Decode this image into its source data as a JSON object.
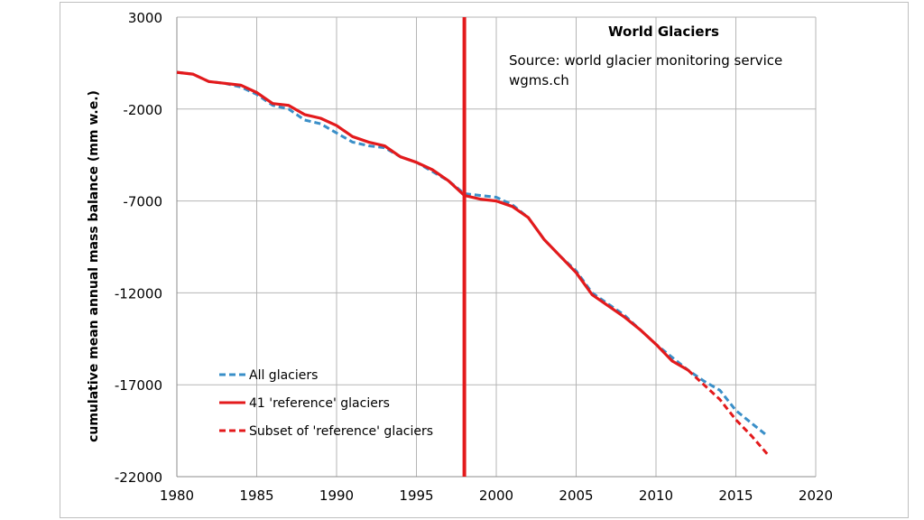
{
  "chart_data": {
    "type": "line",
    "title": "World Glaciers",
    "xlabel": "",
    "ylabel": "cumulative mean annual mass balance (mm w.e.)",
    "xlim": [
      1980,
      2020
    ],
    "ylim": [
      -22000,
      3000
    ],
    "x_ticks": [
      1980,
      1985,
      1990,
      1995,
      2000,
      2005,
      2010,
      2015,
      2020
    ],
    "y_ticks": [
      3000,
      -2000,
      -7000,
      -12000,
      -17000,
      -22000
    ],
    "grid": true,
    "legend_position": "bottom-left",
    "annotations": {
      "source": "Source: world glacier monitoring service",
      "url": "wgms.ch"
    },
    "vertical_marker": {
      "x": 1998,
      "color": "#e31a1c"
    },
    "series": [
      {
        "name": "All glaciers",
        "style": "dashed",
        "color": "#3a8fc8",
        "x": [
          1980,
          1981,
          1982,
          1983,
          1984,
          1985,
          1986,
          1987,
          1988,
          1989,
          1990,
          1991,
          1992,
          1993,
          1994,
          1995,
          1996,
          1997,
          1998,
          1999,
          2000,
          2001,
          2002,
          2003,
          2004,
          2005,
          2006,
          2007,
          2008,
          2009,
          2010,
          2011,
          2012,
          2013,
          2014,
          2015,
          2016,
          2017
        ],
        "values": [
          0,
          -100,
          -500,
          -600,
          -800,
          -1200,
          -1800,
          -2000,
          -2600,
          -2800,
          -3300,
          -3800,
          -4000,
          -4100,
          -4600,
          -4900,
          -5400,
          -5900,
          -6600,
          -6700,
          -6800,
          -7200,
          -7900,
          -9100,
          -10000,
          -10800,
          -12000,
          -12600,
          -13200,
          -14000,
          -14800,
          -15500,
          -16200,
          -16800,
          -17300,
          -18400,
          -19100,
          -19800
        ]
      },
      {
        "name": "41 'reference' glaciers",
        "style": "solid",
        "color": "#e31a1c",
        "x": [
          1980,
          1981,
          1982,
          1983,
          1984,
          1985,
          1986,
          1987,
          1988,
          1989,
          1990,
          1991,
          1992,
          1993,
          1994,
          1995,
          1996,
          1997,
          1998,
          1999,
          2000,
          2001,
          2002,
          2003,
          2004,
          2005,
          2006,
          2007,
          2008,
          2009,
          2010,
          2011,
          2012
        ],
        "values": [
          0,
          -100,
          -500,
          -600,
          -700,
          -1100,
          -1700,
          -1800,
          -2300,
          -2500,
          -2900,
          -3500,
          -3800,
          -4000,
          -4600,
          -4900,
          -5300,
          -5900,
          -6700,
          -6900,
          -7000,
          -7300,
          -7900,
          -9100,
          -10000,
          -10900,
          -12100,
          -12700,
          -13300,
          -14000,
          -14800,
          -15700,
          -16200
        ]
      },
      {
        "name": "Subset of 'reference' glaciers",
        "style": "dashed",
        "color": "#e31a1c",
        "x": [
          2012,
          2013,
          2014,
          2015,
          2016,
          2017
        ],
        "values": [
          -16200,
          -17000,
          -17800,
          -18900,
          -19800,
          -20800
        ]
      }
    ]
  }
}
